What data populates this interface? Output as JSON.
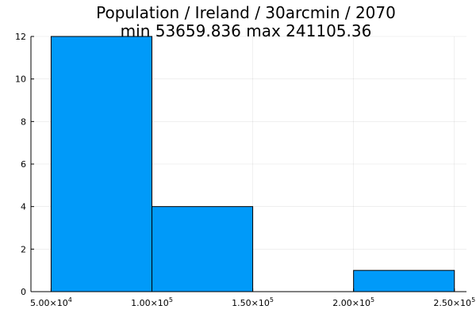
{
  "chart_data": {
    "type": "bar",
    "title": "Population / Ireland / 30arcmin / 2070",
    "subtitle": "min 53659.836  max 241105.36",
    "xlabel": "",
    "ylabel": "",
    "bins": [
      {
        "start": 50000,
        "end": 100000,
        "count": 12
      },
      {
        "start": 100000,
        "end": 150000,
        "count": 4
      },
      {
        "start": 150000,
        "end": 200000,
        "count": 0
      },
      {
        "start": 200000,
        "end": 250000,
        "count": 1
      }
    ],
    "xlim": [
      40000,
      256000
    ],
    "ylim": [
      0,
      12
    ],
    "x_ticks": [
      {
        "value": 50000,
        "mantissa": "5.00",
        "exponent": "4"
      },
      {
        "value": 100000,
        "mantissa": "1.00",
        "exponent": "5"
      },
      {
        "value": 150000,
        "mantissa": "1.50",
        "exponent": "5"
      },
      {
        "value": 200000,
        "mantissa": "2.00",
        "exponent": "5"
      },
      {
        "value": 250000,
        "mantissa": "2.50",
        "exponent": "5"
      }
    ],
    "y_ticks": [
      0,
      2,
      4,
      6,
      8,
      10,
      12
    ],
    "grid": true,
    "legend": "none",
    "bar_color": "#009af9",
    "edge_color": "#000000"
  }
}
